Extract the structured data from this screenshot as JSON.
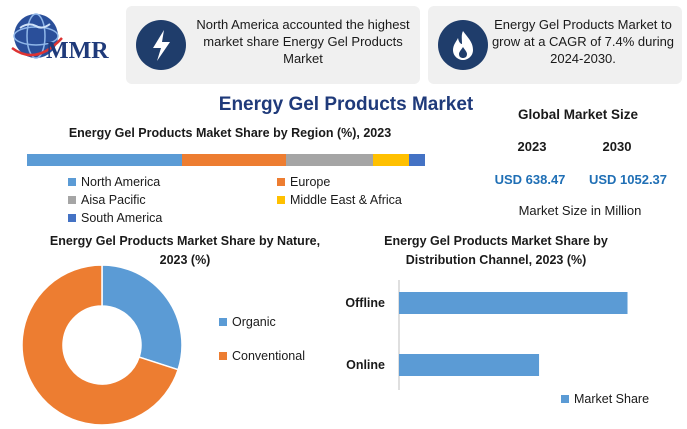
{
  "logo": {
    "text": "MMR"
  },
  "info_boxes": [
    {
      "text": "North America accounted the highest market share Energy Gel Products Market",
      "icon": "lightning-icon"
    },
    {
      "text": "Energy Gel Products Market to grow at a CAGR of 7.4% during 2024-2030.",
      "icon": "flame-icon"
    }
  ],
  "main_title": "Energy Gel Products Market",
  "global_market_size": {
    "title": "Global Market Size",
    "years": [
      "2023",
      "2030"
    ],
    "values": [
      "USD 638.47",
      "USD 1052.37"
    ],
    "unit_label": "Market Size in Million"
  },
  "colors": {
    "blue": "#5b9bd5",
    "orange": "#ed7d31",
    "gray": "#a5a5a5",
    "yellow": "#ffc000",
    "dark_blue": "#4472c4",
    "title_blue": "#1f3a7a",
    "value_blue": "#1f6fb5"
  },
  "chart_data": [
    {
      "type": "bar",
      "orientation": "horizontal-stacked",
      "title": "Energy Gel Products Maket Share by Region (%), 2023",
      "series": [
        {
          "name": "North America",
          "value": 39,
          "color": "#5b9bd5"
        },
        {
          "name": "Europe",
          "value": 26,
          "color": "#ed7d31"
        },
        {
          "name": "Aisa Pacific",
          "value": 22,
          "color": "#a5a5a5"
        },
        {
          "name": "Middle East & Africa",
          "value": 9,
          "color": "#ffc000"
        },
        {
          "name": "South America",
          "value": 4,
          "color": "#4472c4"
        }
      ],
      "xlim": [
        0,
        100
      ],
      "legend_position": "bottom"
    },
    {
      "type": "pie",
      "variant": "donut",
      "title": "Energy Gel Products Market Share by Nature, 2023 (%)",
      "slices": [
        {
          "name": "Organic",
          "value": 30,
          "color": "#5b9bd5"
        },
        {
          "name": "Conventional",
          "value": 70,
          "color": "#ed7d31"
        }
      ],
      "legend_position": "right"
    },
    {
      "type": "bar",
      "orientation": "horizontal",
      "title": "Energy Gel Products Market Share by Distribution Channel, 2023 (%)",
      "categories": [
        "Offline",
        "Online"
      ],
      "series": [
        {
          "name": "Market Share",
          "values": [
            62,
            38
          ],
          "color": "#5b9bd5"
        }
      ],
      "xlim": [
        0,
        70
      ],
      "legend_position": "bottom-right"
    }
  ]
}
